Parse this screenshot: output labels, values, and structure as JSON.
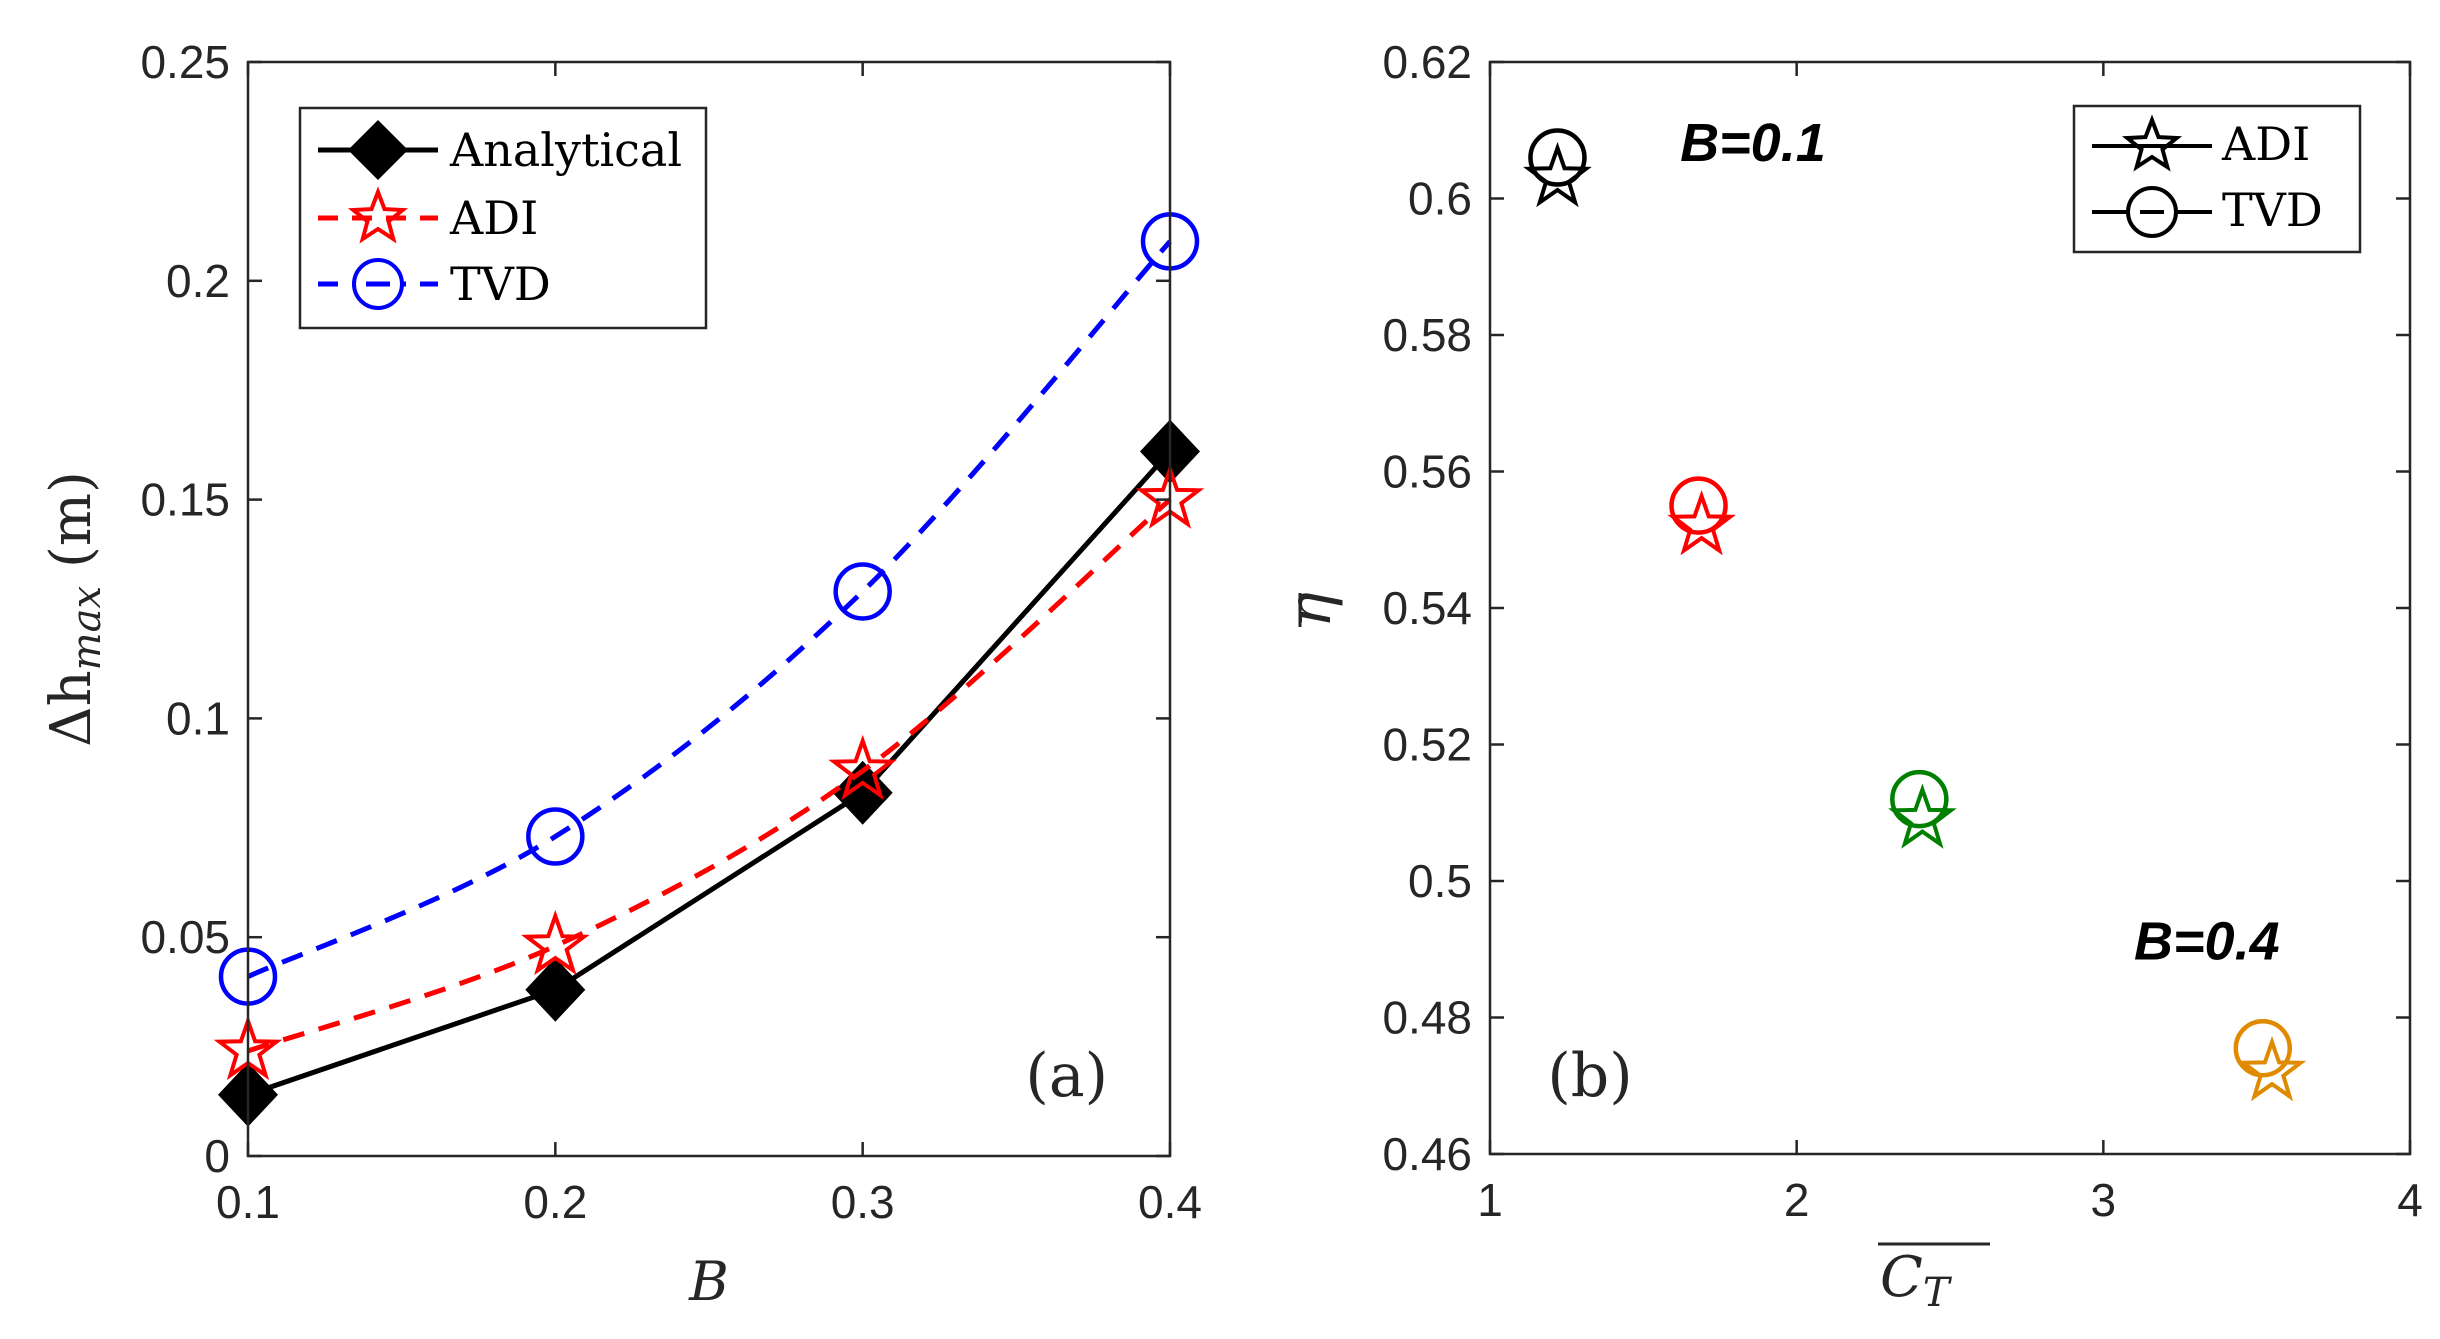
{
  "chart_data": [
    {
      "type": "line",
      "panel_label": "(a)",
      "xlabel": "B",
      "ylabel_base": "Δh",
      "ylabel_sub": "max",
      "ylabel_unit": "(m)",
      "xlim": [
        0.1,
        0.4
      ],
      "ylim": [
        0,
        0.25
      ],
      "xticks": [
        0.1,
        0.2,
        0.3,
        0.4
      ],
      "xtick_labels": [
        "0.1",
        "0.2",
        "0.3",
        "0.4"
      ],
      "yticks": [
        0,
        0.05,
        0.1,
        0.15,
        0.2,
        0.25
      ],
      "ytick_labels": [
        "0",
        "0.05",
        "0.1",
        "0.15",
        "0.2",
        "0.25"
      ],
      "legend_position": "top-left",
      "x": [
        0.1,
        0.2,
        0.3,
        0.4
      ],
      "series": [
        {
          "name": "Analytical",
          "values": [
            0.014,
            0.038,
            0.083,
            0.161
          ],
          "color": "#000000",
          "dash": "solid",
          "marker": "diamond"
        },
        {
          "name": "ADI",
          "values": [
            0.024,
            0.048,
            0.088,
            0.15
          ],
          "color": "#ff0000",
          "dash": "dashed",
          "marker": "star"
        },
        {
          "name": "TVD",
          "values": [
            0.041,
            0.073,
            0.129,
            0.209
          ],
          "color": "#0000ff",
          "dash": "dashed",
          "marker": "circle"
        }
      ]
    },
    {
      "type": "scatter",
      "panel_label": "(b)",
      "xlabel": "C",
      "xlabel_sub": "T",
      "ylabel": "η",
      "xlim": [
        1,
        4
      ],
      "ylim": [
        0.46,
        0.62
      ],
      "xticks": [
        1,
        2,
        3,
        4
      ],
      "xtick_labels": [
        "1",
        "2",
        "3",
        "4"
      ],
      "yticks": [
        0.46,
        0.48,
        0.5,
        0.52,
        0.54,
        0.56,
        0.58,
        0.6,
        0.62
      ],
      "ytick_labels": [
        "0.46",
        "0.48",
        "0.5",
        "0.52",
        "0.54",
        "0.56",
        "0.58",
        "0.6",
        "0.62"
      ],
      "legend_position": "top-right",
      "legend": [
        {
          "name": "ADI",
          "marker": "star"
        },
        {
          "name": "TVD",
          "marker": "circle"
        }
      ],
      "annotations": [
        {
          "text": "B=0.1",
          "x": 1.62,
          "y": 0.6055
        },
        {
          "text": "B=0.4",
          "x": 3.1,
          "y": 0.4885
        }
      ],
      "series": [
        {
          "name": "TVD",
          "marker": "circle",
          "x": [
            1.22,
            1.68,
            2.4,
            3.52
          ],
          "y": [
            0.606,
            0.555,
            0.512,
            0.4755
          ],
          "colors": [
            "#000000",
            "#ff0000",
            "#008000",
            "#e08a00"
          ]
        },
        {
          "name": "ADI",
          "marker": "star",
          "x": [
            1.22,
            1.69,
            2.41,
            3.55
          ],
          "y": [
            0.603,
            0.552,
            0.509,
            0.472
          ],
          "colors": [
            "#000000",
            "#ff0000",
            "#008000",
            "#e08a00"
          ]
        }
      ]
    }
  ]
}
